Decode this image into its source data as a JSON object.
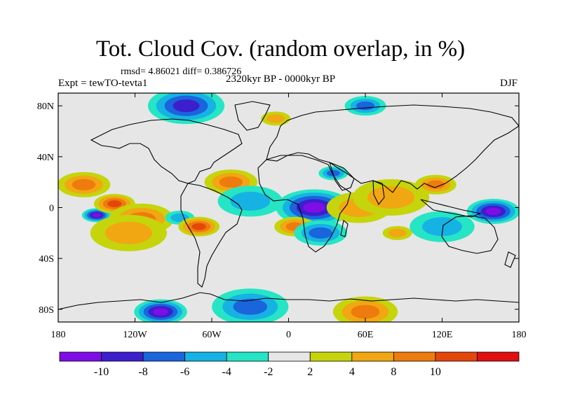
{
  "header": {
    "title": "Tot. Cloud Cov. (random overlap, in %)",
    "stats": "rmsd= 4.86021 diff= 0.386726",
    "experiment": "Expt = tewTO-tevta1",
    "period": "2320kyr BP - 0000kyr BP",
    "season": "DJF"
  },
  "axes": {
    "lat_ticks": [
      {
        "value": 80,
        "label": "80N"
      },
      {
        "value": 40,
        "label": "40N"
      },
      {
        "value": 0,
        "label": "0"
      },
      {
        "value": -40,
        "label": "40S"
      },
      {
        "value": -80,
        "label": "80S"
      }
    ],
    "lon_ticks": [
      {
        "value": -180,
        "label": "180"
      },
      {
        "value": -120,
        "label": "120W"
      },
      {
        "value": -60,
        "label": "60W"
      },
      {
        "value": 0,
        "label": "0"
      },
      {
        "value": 60,
        "label": "60E"
      },
      {
        "value": 120,
        "label": "120E"
      },
      {
        "value": 180,
        "label": "180"
      }
    ],
    "lon_range": [
      -180,
      180
    ],
    "lat_range": [
      -90,
      90
    ]
  },
  "colorbar": {
    "colors": [
      "#7f0ee6",
      "#3c1ecd",
      "#1a64dc",
      "#16b2e4",
      "#25e5c5",
      "#e6e6e6",
      "#c6d40c",
      "#f1a712",
      "#ee7b0e",
      "#e4470a",
      "#e10f0f"
    ],
    "labels": [
      "-10",
      "-8",
      "-6",
      "-4",
      "-2",
      "2",
      "4",
      "8",
      "10"
    ]
  },
  "chart_data": {
    "type": "heatmap",
    "variable": "Tot. Cloud Cov. (random overlap, in %)",
    "experiment": "tewTO-tevta1",
    "period": "2320kyr BP - 0000kyr BP",
    "season": "DJF",
    "rmsd": 4.86021,
    "diff": 0.386726,
    "contour_levels": [
      -10,
      -8,
      -6,
      -4,
      -2,
      2,
      4,
      8,
      10
    ],
    "xlim": [
      -180,
      180
    ],
    "ylim": [
      -90,
      90
    ],
    "features": [
      {
        "lon": -150,
        "lat": -6,
        "value": -11
      },
      {
        "lon": -136,
        "lat": 3,
        "value": 10
      },
      {
        "lon": -160,
        "lat": 18,
        "value": 8
      },
      {
        "lon": -115,
        "lat": -9,
        "value": 9
      },
      {
        "lon": -125,
        "lat": -20,
        "value": 5
      },
      {
        "lon": -85,
        "lat": -8,
        "value": -5
      },
      {
        "lon": -70,
        "lat": -15,
        "value": 10
      },
      {
        "lon": -45,
        "lat": 20,
        "value": 9
      },
      {
        "lon": -30,
        "lat": 5,
        "value": -4
      },
      {
        "lon": 20,
        "lat": 0,
        "value": -10
      },
      {
        "lon": 35,
        "lat": 27,
        "value": -6
      },
      {
        "lon": 5,
        "lat": -15,
        "value": 9
      },
      {
        "lon": 25,
        "lat": -20,
        "value": -7
      },
      {
        "lon": 55,
        "lat": 0,
        "value": 6
      },
      {
        "lon": 80,
        "lat": 8,
        "value": 7
      },
      {
        "lon": 85,
        "lat": -20,
        "value": 5
      },
      {
        "lon": 115,
        "lat": 18,
        "value": 8
      },
      {
        "lon": 160,
        "lat": -3,
        "value": -12
      },
      {
        "lon": 120,
        "lat": -15,
        "value": -5
      },
      {
        "lon": -80,
        "lat": 80,
        "value": -9
      },
      {
        "lon": -10,
        "lat": 70,
        "value": 7
      },
      {
        "lon": 60,
        "lat": 80,
        "value": -6
      },
      {
        "lon": -100,
        "lat": -82,
        "value": -10
      },
      {
        "lon": 60,
        "lat": -82,
        "value": 8
      },
      {
        "lon": -30,
        "lat": -78,
        "value": -6
      }
    ]
  }
}
